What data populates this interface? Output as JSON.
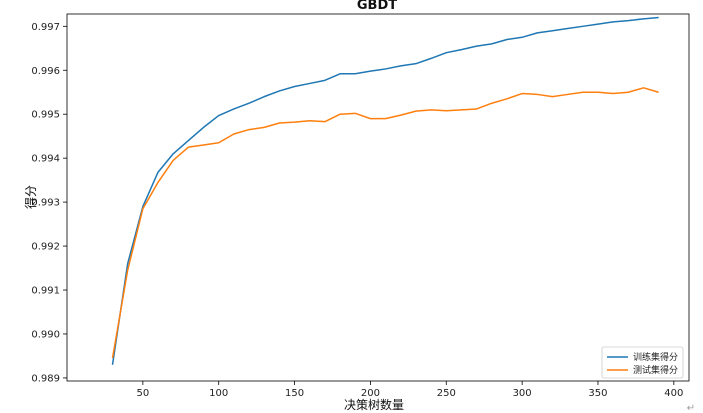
{
  "chart_data": {
    "type": "line",
    "title": "GBDT",
    "xlabel": "决策树数量",
    "ylabel": "得分",
    "xlim": [
      0,
      410
    ],
    "ylim": [
      0.98893,
      0.99728
    ],
    "x_ticks": [
      50,
      100,
      150,
      200,
      250,
      300,
      350,
      400
    ],
    "x_tick_labels": [
      "50",
      "100",
      "150",
      "200",
      "250",
      "300",
      "350",
      "400"
    ],
    "y_ticks": [
      0.989,
      0.99,
      0.991,
      0.992,
      0.993,
      0.994,
      0.995,
      0.996,
      0.997
    ],
    "y_tick_labels": [
      "0.989",
      "0.990",
      "0.991",
      "0.992",
      "0.993",
      "0.994",
      "0.995",
      "0.996",
      "0.997"
    ],
    "grid": false,
    "legend_position": "lower-right",
    "x": [
      30,
      40,
      50,
      60,
      70,
      80,
      90,
      100,
      110,
      120,
      130,
      140,
      150,
      160,
      170,
      180,
      190,
      200,
      210,
      220,
      230,
      240,
      250,
      260,
      270,
      280,
      290,
      300,
      310,
      320,
      330,
      340,
      350,
      360,
      370,
      380,
      390
    ],
    "series": [
      {
        "name": "训练集得分",
        "color": "#1f77b4",
        "values": [
          0.9893,
          0.9916,
          0.9929,
          0.99368,
          0.9941,
          0.9944,
          0.9947,
          0.99497,
          0.99512,
          0.99525,
          0.9954,
          0.99553,
          0.99563,
          0.9957,
          0.99577,
          0.99592,
          0.99592,
          0.99598,
          0.99603,
          0.9961,
          0.99615,
          0.99627,
          0.9964,
          0.99647,
          0.99655,
          0.9966,
          0.9967,
          0.99675,
          0.99685,
          0.9969,
          0.99695,
          0.997,
          0.99705,
          0.9971,
          0.99713,
          0.99717,
          0.9972
        ]
      },
      {
        "name": "测试集得分",
        "color": "#ff7f0e",
        "values": [
          0.98945,
          0.99145,
          0.99285,
          0.99345,
          0.99395,
          0.99425,
          0.9943,
          0.99435,
          0.99455,
          0.99465,
          0.9947,
          0.9948,
          0.99482,
          0.99485,
          0.99483,
          0.995,
          0.99502,
          0.9949,
          0.9949,
          0.99498,
          0.99507,
          0.9951,
          0.99508,
          0.9951,
          0.99512,
          0.99525,
          0.99535,
          0.99547,
          0.99545,
          0.9954,
          0.99545,
          0.9955,
          0.9955,
          0.99547,
          0.9955,
          0.9956,
          0.9955
        ]
      }
    ]
  },
  "page": {
    "corner_mark": "↵"
  }
}
